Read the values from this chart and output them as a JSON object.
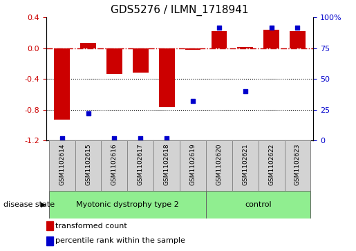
{
  "title": "GDS5276 / ILMN_1718941",
  "samples": [
    "GSM1102614",
    "GSM1102615",
    "GSM1102616",
    "GSM1102617",
    "GSM1102618",
    "GSM1102619",
    "GSM1102620",
    "GSM1102621",
    "GSM1102622",
    "GSM1102623"
  ],
  "transformed_count": [
    -0.93,
    0.07,
    -0.33,
    -0.32,
    -0.77,
    -0.02,
    0.22,
    0.02,
    0.24,
    0.22
  ],
  "percentile_rank": [
    2,
    22,
    2,
    2,
    2,
    32,
    92,
    40,
    92,
    92
  ],
  "bar_color": "#cc0000",
  "dot_color": "#0000cc",
  "disease_groups": [
    {
      "label": "Myotonic dystrophy type 2",
      "start": 0,
      "end": 6
    },
    {
      "label": "control",
      "start": 6,
      "end": 10
    }
  ],
  "group_color": "#90ee90",
  "sample_box_color": "#d3d3d3",
  "ylim_left": [
    -1.2,
    0.4
  ],
  "ylim_right": [
    0,
    100
  ],
  "yticks_left": [
    -1.2,
    -0.8,
    -0.4,
    0.0,
    0.4
  ],
  "yticks_right": [
    0,
    25,
    50,
    75,
    100
  ],
  "ytick_labels_right": [
    "0",
    "25",
    "50",
    "75",
    "100%"
  ],
  "hline_y": 0.0,
  "dotted_lines": [
    -0.4,
    -0.8
  ],
  "legend_items": [
    {
      "color": "#cc0000",
      "label": "transformed count"
    },
    {
      "color": "#0000cc",
      "label": "percentile rank within the sample"
    }
  ]
}
